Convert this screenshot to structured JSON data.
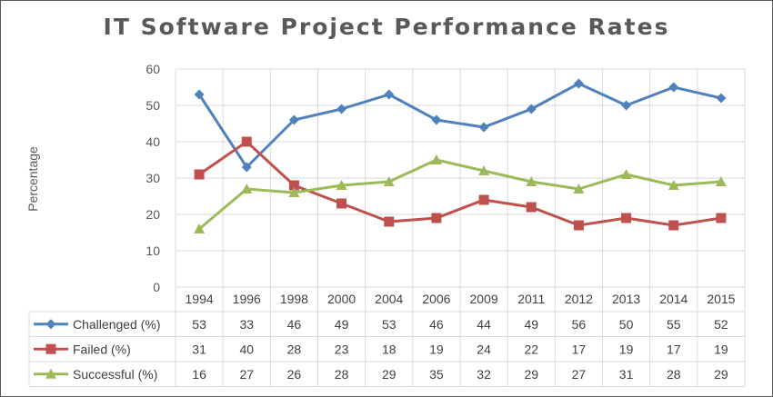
{
  "chart_data": {
    "type": "line",
    "title": "IT Software Project Performance Rates",
    "ylabel": "Percentage",
    "xlabel": "",
    "ylim": [
      0,
      60
    ],
    "yticks": [
      0,
      10,
      20,
      30,
      40,
      50,
      60
    ],
    "grid": true,
    "legend": "data-table",
    "categories": [
      "1994",
      "1996",
      "1998",
      "2000",
      "2004",
      "2006",
      "2009",
      "2011",
      "2012",
      "2013",
      "2014",
      "2015"
    ],
    "series": [
      {
        "name": "Challenged (%)",
        "color": "#4f81bd",
        "marker": "diamond",
        "values": [
          53,
          33,
          46,
          49,
          53,
          46,
          44,
          49,
          56,
          50,
          55,
          52
        ]
      },
      {
        "name": "Failed (%)",
        "color": "#c0504d",
        "marker": "square",
        "values": [
          31,
          40,
          28,
          23,
          18,
          19,
          24,
          22,
          17,
          19,
          17,
          19
        ]
      },
      {
        "name": "Successful (%)",
        "color": "#9bbb59",
        "marker": "triangle",
        "values": [
          16,
          27,
          26,
          28,
          29,
          35,
          32,
          29,
          27,
          31,
          28,
          29
        ]
      }
    ]
  }
}
